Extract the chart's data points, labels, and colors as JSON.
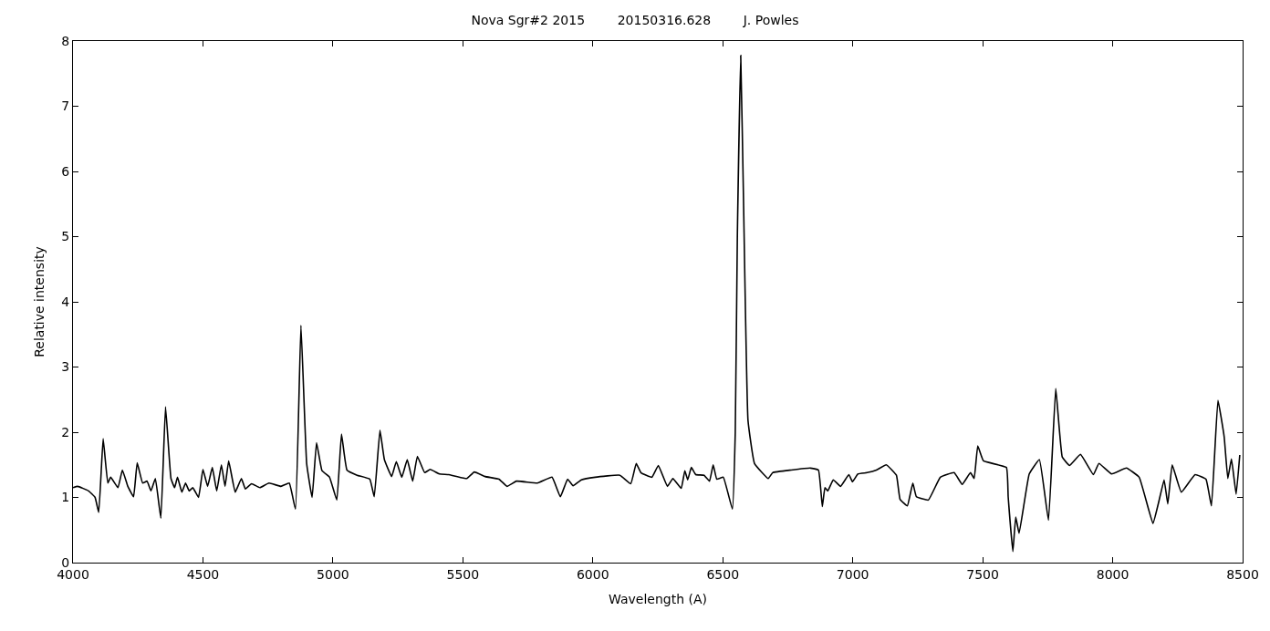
{
  "chart_data": {
    "type": "line",
    "title": "Nova Sgr#2 2015        20150316.628        J. Powles",
    "xlabel": "Wavelength (A)",
    "ylabel": "Relative intensity",
    "xlim": [
      4000,
      8500
    ],
    "xticks": [
      4000,
      4500,
      5000,
      5500,
      6000,
      6500,
      7000,
      7500,
      8000,
      8500
    ],
    "ylim": [
      0,
      8
    ],
    "yticks": [
      0,
      1,
      2,
      3,
      4,
      5,
      6,
      7,
      8
    ],
    "marker": "none",
    "line_style": "solid",
    "series": [
      {
        "color": "#000000",
        "x": [
          4000,
          4018,
          4060,
          4085,
          4099,
          4116,
          4134,
          4145,
          4173,
          4190,
          4211,
          4233,
          4247,
          4268,
          4285,
          4300,
          4317,
          4338,
          4356,
          4377,
          4391,
          4402,
          4419,
          4433,
          4447,
          4461,
          4483,
          4500,
          4518,
          4536,
          4553,
          4571,
          4585,
          4599,
          4624,
          4648,
          4663,
          4687,
          4719,
          4754,
          4800,
          4832,
          4856,
          4877,
          4899,
          4920,
          4937,
          4958,
          4987,
          5015,
          5033,
          5054,
          5093,
          5142,
          5159,
          5181,
          5198,
          5226,
          5244,
          5265,
          5286,
          5307,
          5325,
          5353,
          5374,
          5410,
          5445,
          5515,
          5544,
          5586,
          5639,
          5670,
          5706,
          5787,
          5843,
          5875,
          5903,
          5924,
          5956,
          6009,
          6104,
          6146,
          6167,
          6185,
          6227,
          6252,
          6287,
          6308,
          6340,
          6354,
          6365,
          6379,
          6396,
          6428,
          6449,
          6463,
          6477,
          6502,
          6537,
          6548,
          6556,
          6569,
          6580,
          6597,
          6622,
          6675,
          6692,
          6763,
          6837,
          6868,
          6883,
          6893,
          6904,
          6925,
          6953,
          6985,
          6999,
          7020,
          7055,
          7091,
          7129,
          7168,
          7182,
          7210,
          7231,
          7245,
          7291,
          7337,
          7390,
          7421,
          7453,
          7467,
          7481,
          7503,
          7591,
          7598,
          7616,
          7627,
          7640,
          7679,
          7718,
          7753,
          7781,
          7806,
          7834,
          7876,
          7926,
          7947,
          7996,
          8053,
          8102,
          8155,
          8176,
          8198,
          8212,
          8229,
          8264,
          8317,
          8359,
          8380,
          8405,
          8429,
          8443,
          8457,
          8475,
          8489
        ],
        "values": [
          1.15,
          1.17,
          1.1,
          1.0,
          0.77,
          1.9,
          1.22,
          1.31,
          1.15,
          1.42,
          1.17,
          1.01,
          1.53,
          1.22,
          1.25,
          1.1,
          1.29,
          0.68,
          2.39,
          1.29,
          1.15,
          1.31,
          1.08,
          1.22,
          1.1,
          1.15,
          1.0,
          1.43,
          1.17,
          1.46,
          1.1,
          1.5,
          1.17,
          1.56,
          1.08,
          1.29,
          1.13,
          1.21,
          1.15,
          1.22,
          1.17,
          1.22,
          0.82,
          3.64,
          1.52,
          1.0,
          1.84,
          1.41,
          1.31,
          0.96,
          1.97,
          1.42,
          1.34,
          1.28,
          1.01,
          2.03,
          1.58,
          1.32,
          1.55,
          1.31,
          1.58,
          1.25,
          1.63,
          1.38,
          1.43,
          1.36,
          1.35,
          1.29,
          1.39,
          1.32,
          1.28,
          1.17,
          1.25,
          1.22,
          1.31,
          1.01,
          1.28,
          1.18,
          1.27,
          1.31,
          1.34,
          1.21,
          1.52,
          1.38,
          1.31,
          1.49,
          1.17,
          1.29,
          1.14,
          1.41,
          1.27,
          1.46,
          1.35,
          1.34,
          1.25,
          1.5,
          1.28,
          1.31,
          0.82,
          2.0,
          5.0,
          7.78,
          5.5,
          2.18,
          1.52,
          1.29,
          1.38,
          1.42,
          1.45,
          1.42,
          0.86,
          1.15,
          1.1,
          1.27,
          1.17,
          1.35,
          1.24,
          1.36,
          1.38,
          1.42,
          1.5,
          1.34,
          0.97,
          0.87,
          1.22,
          1.01,
          0.96,
          1.31,
          1.38,
          1.2,
          1.38,
          1.29,
          1.79,
          1.56,
          1.46,
          1.01,
          0.17,
          0.7,
          0.45,
          1.36,
          1.58,
          0.65,
          2.67,
          1.62,
          1.49,
          1.66,
          1.35,
          1.52,
          1.36,
          1.45,
          1.31,
          0.6,
          0.91,
          1.27,
          0.9,
          1.5,
          1.08,
          1.35,
          1.28,
          0.87,
          2.49,
          1.93,
          1.29,
          1.59,
          1.05,
          1.65
        ]
      }
    ]
  }
}
